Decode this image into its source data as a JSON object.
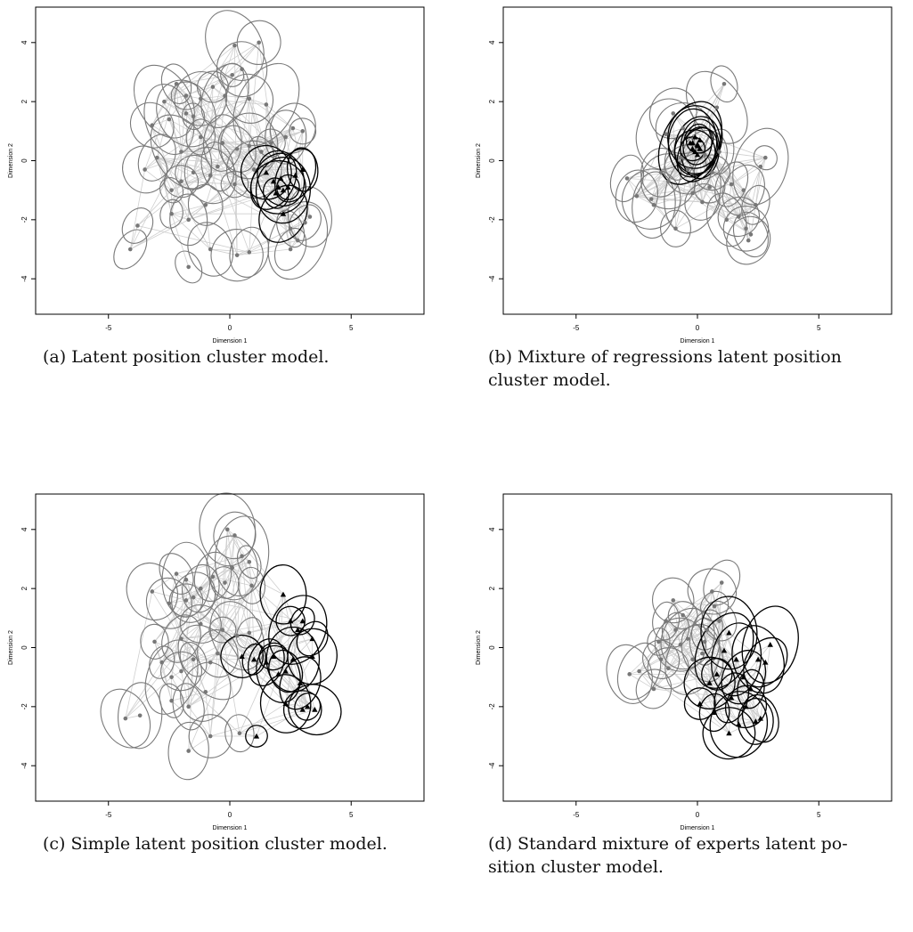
{
  "panels": [
    {
      "id": "a",
      "caption": "(a) Latent position cluster model.",
      "chart_data": {
        "type": "scatter",
        "xlabel": "Dimension 1",
        "ylabel": "Dimension 2",
        "xlim": [
          -8,
          8
        ],
        "ylim": [
          -5.2,
          5.2
        ],
        "xticks": [
          -5,
          0,
          5
        ],
        "yticks": [
          -4,
          -2,
          0,
          2,
          4
        ],
        "series": [
          {
            "style": "gray-circle",
            "color": "#777777",
            "points": [
              [
                -2.2,
                2.6
              ],
              [
                -1.8,
                2.2
              ],
              [
                -1.5,
                1.5
              ],
              [
                -1.2,
                2.1
              ],
              [
                -0.7,
                2.5
              ],
              [
                0.2,
                3.9
              ],
              [
                0.5,
                3.1
              ],
              [
                1.2,
                4.0
              ],
              [
                0.1,
                2.9
              ],
              [
                -0.2,
                2.2
              ],
              [
                0.8,
                2.1
              ],
              [
                1.5,
                1.9
              ],
              [
                -2.5,
                1.4
              ],
              [
                -3.2,
                1.2
              ],
              [
                -3.5,
                -0.3
              ],
              [
                -3.0,
                0.1
              ],
              [
                -2.4,
                -1.0
              ],
              [
                -2.0,
                -0.7
              ],
              [
                -1.5,
                -0.4
              ],
              [
                -1.2,
                0.8
              ],
              [
                -0.8,
                -0.5
              ],
              [
                -0.5,
                -0.2
              ],
              [
                0.3,
                0.4
              ],
              [
                0.8,
                0.5
              ],
              [
                1.3,
                0.3
              ],
              [
                1.7,
                0.6
              ],
              [
                2.3,
                0.8
              ],
              [
                2.6,
                1.1
              ],
              [
                3.0,
                1.0
              ],
              [
                0.2,
                -0.8
              ],
              [
                -1.0,
                -1.5
              ],
              [
                -1.7,
                -2.0
              ],
              [
                -2.4,
                -1.8
              ],
              [
                -3.8,
                -2.2
              ],
              [
                -4.1,
                -3.0
              ],
              [
                -1.7,
                -3.6
              ],
              [
                -0.8,
                -3.0
              ],
              [
                0.3,
                -3.2
              ],
              [
                0.8,
                -3.1
              ],
              [
                2.5,
                -3.0
              ],
              [
                2.8,
                -2.7
              ],
              [
                3.1,
                -2.1
              ],
              [
                3.3,
                -1.9
              ],
              [
                2.5,
                -2.3
              ],
              [
                -0.3,
                0.6
              ],
              [
                1.0,
                -0.3
              ],
              [
                -2.0,
                0.3
              ],
              [
                -1.8,
                1.6
              ],
              [
                -2.7,
                2.0
              ]
            ]
          },
          {
            "style": "black-triangle",
            "color": "#000000",
            "points": [
              [
                1.5,
                -0.4
              ],
              [
                1.8,
                -0.7
              ],
              [
                2.0,
                -0.9
              ],
              [
                2.2,
                -1.0
              ],
              [
                2.1,
                -0.6
              ],
              [
                2.4,
                -0.9
              ],
              [
                1.9,
                -1.1
              ],
              [
                2.7,
                -0.5
              ],
              [
                3.0,
                -0.3
              ],
              [
                2.2,
                -1.8
              ]
            ]
          }
        ]
      }
    },
    {
      "id": "b",
      "caption": "(b) Mixture of regressions latent position\ncluster model.",
      "chart_data": {
        "type": "scatter",
        "xlabel": "Dimension 1",
        "ylabel": "Dimension 2",
        "xlim": [
          -8,
          8
        ],
        "ylim": [
          -5.2,
          5.2
        ],
        "xticks": [
          -5,
          0,
          5
        ],
        "yticks": [
          -4,
          -2,
          0,
          2,
          4
        ],
        "series": [
          {
            "style": "gray-circle",
            "color": "#777777",
            "points": [
              [
                -2.9,
                -0.6
              ],
              [
                -2.5,
                -1.2
              ],
              [
                -1.8,
                -1.5
              ],
              [
                -1.5,
                -0.4
              ],
              [
                -1.3,
                0.9
              ],
              [
                -1.0,
                1.6
              ],
              [
                -0.6,
                1.1
              ],
              [
                -0.4,
                -0.3
              ],
              [
                -0.2,
                -1.1
              ],
              [
                0.2,
                -1.4
              ],
              [
                0.6,
                -0.4
              ],
              [
                0.9,
                0.3
              ],
              [
                1.1,
                2.6
              ],
              [
                0.8,
                1.8
              ],
              [
                1.4,
                -0.8
              ],
              [
                1.7,
                -1.9
              ],
              [
                2.0,
                -2.3
              ],
              [
                2.2,
                -2.5
              ],
              [
                2.4,
                -1.5
              ],
              [
                2.6,
                -0.2
              ],
              [
                2.8,
                0.1
              ],
              [
                1.2,
                -2.0
              ],
              [
                -0.9,
                -2.3
              ],
              [
                -1.9,
                -1.3
              ],
              [
                -0.7,
                0.1
              ],
              [
                0.3,
                0.2
              ],
              [
                0.5,
                -0.9
              ],
              [
                -1.2,
                -0.7
              ],
              [
                1.9,
                -1.0
              ],
              [
                2.1,
                -2.7
              ]
            ]
          },
          {
            "style": "black-triangle",
            "color": "#000000",
            "points": [
              [
                -0.3,
                0.6
              ],
              [
                -0.2,
                0.4
              ],
              [
                0.0,
                0.5
              ],
              [
                0.1,
                0.7
              ],
              [
                -0.1,
                0.3
              ],
              [
                0.0,
                0.2
              ],
              [
                -0.2,
                0.6
              ],
              [
                0.1,
                0.4
              ],
              [
                -0.1,
                0.8
              ],
              [
                0.0,
                0.55
              ]
            ]
          }
        ]
      }
    },
    {
      "id": "c",
      "caption": "(c) Simple latent position cluster model.",
      "chart_data": {
        "type": "scatter",
        "xlabel": "Dimension 1",
        "ylabel": "Dimension 2",
        "xlim": [
          -8,
          8
        ],
        "ylim": [
          -5.2,
          5.2
        ],
        "xticks": [
          -5,
          0,
          5
        ],
        "yticks": [
          -4,
          -2,
          0,
          2,
          4
        ],
        "series": [
          {
            "style": "gray-circle",
            "color": "#777777",
            "points": [
              [
                -2.2,
                2.5
              ],
              [
                -1.8,
                2.3
              ],
              [
                -1.5,
                1.7
              ],
              [
                -1.2,
                2.0
              ],
              [
                -0.7,
                2.4
              ],
              [
                -0.1,
                4.0
              ],
              [
                0.2,
                3.8
              ],
              [
                0.5,
                3.1
              ],
              [
                0.8,
                2.9
              ],
              [
                0.1,
                2.7
              ],
              [
                -0.2,
                2.2
              ],
              [
                0.9,
                2.1
              ],
              [
                -2.5,
                1.5
              ],
              [
                -3.2,
                1.9
              ],
              [
                -3.1,
                0.2
              ],
              [
                -2.8,
                -0.5
              ],
              [
                -2.4,
                -1.0
              ],
              [
                -2.0,
                -0.8
              ],
              [
                -1.5,
                -0.4
              ],
              [
                -1.2,
                0.8
              ],
              [
                -0.8,
                -0.5
              ],
              [
                -0.5,
                -0.2
              ],
              [
                0.3,
                0.4
              ],
              [
                0.8,
                0.5
              ],
              [
                -1.0,
                -1.5
              ],
              [
                -1.7,
                -2.0
              ],
              [
                -2.4,
                -1.8
              ],
              [
                -3.7,
                -2.3
              ],
              [
                -4.3,
                -2.4
              ],
              [
                -1.7,
                -3.5
              ],
              [
                -0.8,
                -3.0
              ],
              [
                0.4,
                -2.9
              ],
              [
                -0.3,
                0.6
              ],
              [
                -2.0,
                0.3
              ],
              [
                -1.8,
                1.6
              ]
            ]
          },
          {
            "style": "black-triangle",
            "color": "#000000",
            "points": [
              [
                1.1,
                -3.0
              ],
              [
                0.5,
                -0.3
              ],
              [
                1.0,
                -0.4
              ],
              [
                1.5,
                -0.5
              ],
              [
                1.8,
                -0.3
              ],
              [
                2.0,
                -0.9
              ],
              [
                2.3,
                -0.8
              ],
              [
                2.6,
                -0.4
              ],
              [
                2.8,
                0.6
              ],
              [
                2.5,
                0.9
              ],
              [
                3.0,
                0.9
              ],
              [
                2.2,
                1.8
              ],
              [
                3.4,
                -0.3
              ],
              [
                3.4,
                0.3
              ],
              [
                2.9,
                -1.2
              ],
              [
                3.0,
                -2.1
              ],
              [
                3.2,
                -2.0
              ],
              [
                3.5,
                -2.1
              ],
              [
                2.3,
                -1.9
              ]
            ]
          }
        ]
      }
    },
    {
      "id": "d",
      "caption": "(d) Standard mixture of experts latent po-\nsition cluster model.",
      "chart_data": {
        "type": "scatter",
        "xlabel": "Dimension 1",
        "ylabel": "Dimension 2",
        "xlim": [
          -8,
          8
        ],
        "ylim": [
          -5.2,
          5.2
        ],
        "xticks": [
          -5,
          0,
          5
        ],
        "yticks": [
          -4,
          -2,
          0,
          2,
          4
        ],
        "series": [
          {
            "style": "gray-circle",
            "color": "#777777",
            "points": [
              [
                -2.8,
                -0.9
              ],
              [
                -2.4,
                -0.8
              ],
              [
                -1.8,
                -1.4
              ],
              [
                -1.5,
                -0.4
              ],
              [
                -1.3,
                0.9
              ],
              [
                -1.0,
                1.6
              ],
              [
                -0.6,
                1.1
              ],
              [
                -0.4,
                0.3
              ],
              [
                -0.2,
                -0.4
              ],
              [
                0.2,
                -0.2
              ],
              [
                0.4,
                0.6
              ],
              [
                0.7,
                1.4
              ],
              [
                1.0,
                2.2
              ],
              [
                0.6,
                1.9
              ],
              [
                -1.2,
                -0.7
              ],
              [
                -0.7,
                0.1
              ],
              [
                0.3,
                0.2
              ],
              [
                -0.9,
                0.6
              ],
              [
                -1.6,
                0.2
              ],
              [
                0.9,
                0.9
              ]
            ]
          },
          {
            "style": "black-triangle",
            "color": "#000000",
            "points": [
              [
                0.1,
                -1.9
              ],
              [
                0.5,
                -1.2
              ],
              [
                0.8,
                -0.9
              ],
              [
                1.1,
                -0.1
              ],
              [
                1.3,
                0.5
              ],
              [
                1.6,
                -0.4
              ],
              [
                1.9,
                -1.0
              ],
              [
                2.2,
                -1.4
              ],
              [
                2.5,
                -0.4
              ],
              [
                2.8,
                -0.5
              ],
              [
                3.0,
                0.1
              ],
              [
                1.4,
                -1.7
              ],
              [
                2.0,
                -2.0
              ],
              [
                2.4,
                -2.5
              ],
              [
                1.3,
                -2.9
              ],
              [
                0.7,
                -2.2
              ],
              [
                1.7,
                -2.6
              ],
              [
                2.6,
                -2.4
              ]
            ]
          }
        ]
      }
    }
  ]
}
